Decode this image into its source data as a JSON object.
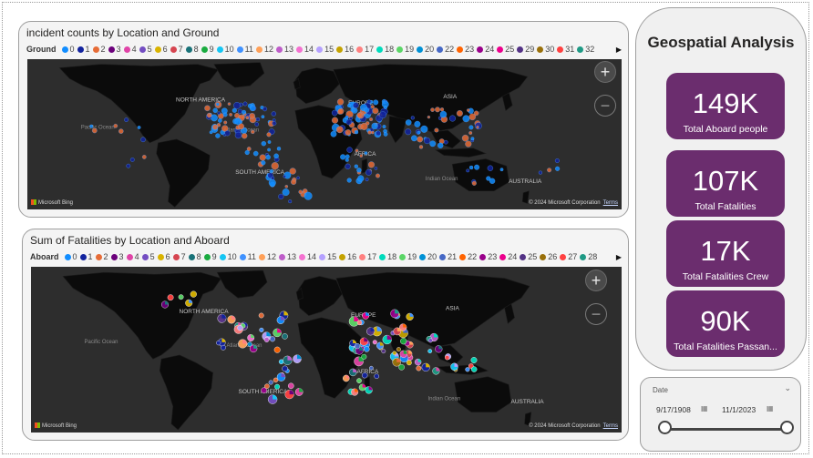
{
  "report": {
    "heading": "Geospatial Analysis"
  },
  "map1": {
    "title": "incident counts by Location and Ground",
    "legend_title": "Ground",
    "legend": [
      {
        "label": "0",
        "color": "#118dff"
      },
      {
        "label": "1",
        "color": "#12239e"
      },
      {
        "label": "2",
        "color": "#e66c37"
      },
      {
        "label": "3",
        "color": "#6b007b"
      },
      {
        "label": "4",
        "color": "#e044a7"
      },
      {
        "label": "5",
        "color": "#744ec2"
      },
      {
        "label": "6",
        "color": "#d9b300"
      },
      {
        "label": "7",
        "color": "#d64550"
      },
      {
        "label": "8",
        "color": "#197278"
      },
      {
        "label": "9",
        "color": "#1aab40"
      },
      {
        "label": "10",
        "color": "#15c6f4"
      },
      {
        "label": "11",
        "color": "#4092ff"
      },
      {
        "label": "12",
        "color": "#ffa058"
      },
      {
        "label": "13",
        "color": "#be5dc9"
      },
      {
        "label": "14",
        "color": "#f472d0"
      },
      {
        "label": "15",
        "color": "#b5a1ff"
      },
      {
        "label": "16",
        "color": "#c4a200"
      },
      {
        "label": "17",
        "color": "#ff8080"
      },
      {
        "label": "18",
        "color": "#00dbbc"
      },
      {
        "label": "19",
        "color": "#5bd667"
      },
      {
        "label": "20",
        "color": "#0091d5"
      },
      {
        "label": "22",
        "color": "#4668c5"
      },
      {
        "label": "23",
        "color": "#ff6300"
      },
      {
        "label": "24",
        "color": "#99008a"
      },
      {
        "label": "25",
        "color": "#ec008c"
      },
      {
        "label": "29",
        "color": "#533285"
      },
      {
        "label": "30",
        "color": "#99700a"
      },
      {
        "label": "31",
        "color": "#ff4141"
      },
      {
        "label": "32",
        "color": "#1f9a85"
      }
    ],
    "labels": {
      "north_america": "NORTH AMERICA",
      "south_america": "SOUTH AMERICA",
      "europe": "EUROPE",
      "asia": "ASIA",
      "africa": "AFRICA",
      "australia": "AUSTRALIA",
      "pacific": "Pacific Ocean",
      "atlantic": "Atlantic Ocean",
      "indian": "Indian Ocean"
    },
    "bing": "Microsoft Bing",
    "copyright": "© 2024 Microsoft Corporation",
    "terms": "Terms",
    "zoom_in": "+",
    "zoom_out": "−"
  },
  "map2": {
    "title": "Sum of Fatalities by Location and Aboard",
    "legend_title": "Aboard",
    "legend": [
      {
        "label": "0",
        "color": "#118dff"
      },
      {
        "label": "1",
        "color": "#12239e"
      },
      {
        "label": "2",
        "color": "#e66c37"
      },
      {
        "label": "3",
        "color": "#6b007b"
      },
      {
        "label": "4",
        "color": "#e044a7"
      },
      {
        "label": "5",
        "color": "#744ec2"
      },
      {
        "label": "6",
        "color": "#d9b300"
      },
      {
        "label": "7",
        "color": "#d64550"
      },
      {
        "label": "8",
        "color": "#197278"
      },
      {
        "label": "9",
        "color": "#1aab40"
      },
      {
        "label": "10",
        "color": "#15c6f4"
      },
      {
        "label": "11",
        "color": "#4092ff"
      },
      {
        "label": "12",
        "color": "#ffa058"
      },
      {
        "label": "13",
        "color": "#be5dc9"
      },
      {
        "label": "14",
        "color": "#f472d0"
      },
      {
        "label": "15",
        "color": "#b5a1ff"
      },
      {
        "label": "16",
        "color": "#c4a200"
      },
      {
        "label": "17",
        "color": "#ff8080"
      },
      {
        "label": "18",
        "color": "#00dbbc"
      },
      {
        "label": "19",
        "color": "#5bd667"
      },
      {
        "label": "20",
        "color": "#0091d5"
      },
      {
        "label": "21",
        "color": "#4668c5"
      },
      {
        "label": "22",
        "color": "#ff6300"
      },
      {
        "label": "23",
        "color": "#99008a"
      },
      {
        "label": "24",
        "color": "#ec008c"
      },
      {
        "label": "25",
        "color": "#533285"
      },
      {
        "label": "26",
        "color": "#99700a"
      },
      {
        "label": "27",
        "color": "#ff4141"
      },
      {
        "label": "28",
        "color": "#1f9a85"
      }
    ],
    "labels": {
      "north_america": "NORTH AMERICA",
      "south_america": "SOUTH AMERICA",
      "europe": "EUROPE",
      "asia": "ASIA",
      "africa": "AFRICA",
      "australia": "AUSTRALIA",
      "pacific": "Pacific Ocean",
      "atlantic": "Atlantic Ocean",
      "indian": "Indian Ocean"
    },
    "bing": "Microsoft Bing",
    "copyright": "© 2024 Microsoft Corporation",
    "terms": "Terms",
    "zoom_in": "+",
    "zoom_out": "−"
  },
  "kpis": [
    {
      "value": "149K",
      "label": "Total Aboard people"
    },
    {
      "value": "107K",
      "label": "Total Fatalities"
    },
    {
      "value": "17K",
      "label": "Total Fatalities Crew"
    },
    {
      "value": "90K",
      "label": "Total Fatalities Passan..."
    }
  ],
  "slicer": {
    "title": "Date",
    "start": "9/17/1908",
    "end": "11/1/2023",
    "range_fraction": [
      0,
      1
    ]
  },
  "colors": {
    "kpi_card": "#6b2d6e",
    "map_background": "#2d2d2d",
    "land": "#0b0b0b",
    "accent_blue": "#118dff"
  }
}
